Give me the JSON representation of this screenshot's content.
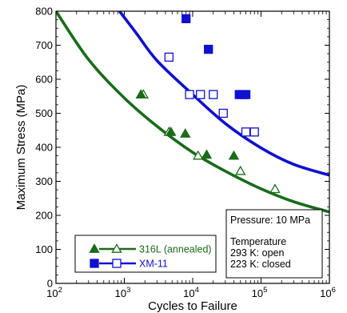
{
  "chart_data": {
    "type": "scatter",
    "xscale": "log",
    "xlim": [
      100,
      1000000
    ],
    "ylim": [
      0,
      800
    ],
    "xlabel": "Cycles to Failure",
    "ylabel": "Maximum Stress (MPa)",
    "x_ticks": [
      {
        "value": 100,
        "base": "10",
        "exp": "2"
      },
      {
        "value": 1000,
        "base": "10",
        "exp": "3"
      },
      {
        "value": 10000,
        "base": "10",
        "exp": "4"
      },
      {
        "value": 100000,
        "base": "10",
        "exp": "5"
      },
      {
        "value": 1000000,
        "base": "10",
        "exp": "6"
      }
    ],
    "y_ticks": [
      "0",
      "100",
      "200",
      "300",
      "400",
      "500",
      "600",
      "700",
      "800"
    ],
    "colors": {
      "green": "#1a6b1a",
      "blue": "#1010d0"
    },
    "series": [
      {
        "name": "316L (annealed)",
        "color": "#1a6b1a",
        "marker": "triangle",
        "open_293K": [
          [
            1900,
            555
          ],
          [
            4500,
            445
          ],
          [
            12000,
            375
          ],
          [
            50000,
            330
          ],
          [
            160000,
            277
          ]
        ],
        "closed_223K": [
          [
            1750,
            555
          ],
          [
            4800,
            445
          ],
          [
            7800,
            440
          ],
          [
            16000,
            378
          ],
          [
            40000,
            375
          ]
        ],
        "fit_curve": [
          [
            100,
            800
          ],
          [
            300,
            658
          ],
          [
            1000,
            545
          ],
          [
            3000,
            462
          ],
          [
            10000,
            385
          ],
          [
            30000,
            330
          ],
          [
            100000,
            278
          ],
          [
            300000,
            240
          ],
          [
            1000000,
            210
          ]
        ]
      },
      {
        "name": "XM-11",
        "color": "#1010d0",
        "marker": "square",
        "open_293K": [
          [
            4500,
            665
          ],
          [
            9000,
            555
          ],
          [
            13000,
            555
          ],
          [
            20000,
            555
          ],
          [
            28000,
            500
          ],
          [
            60000,
            445
          ],
          [
            80000,
            445
          ]
        ],
        "closed_223K": [
          [
            8000,
            778
          ],
          [
            17000,
            688
          ],
          [
            48000,
            555
          ],
          [
            55000,
            555
          ],
          [
            60000,
            555
          ]
        ],
        "fit_curve": [
          [
            850,
            800
          ],
          [
            1500,
            735
          ],
          [
            3000,
            655
          ],
          [
            10000,
            555
          ],
          [
            30000,
            470
          ],
          [
            100000,
            398
          ],
          [
            300000,
            350
          ],
          [
            1000000,
            318
          ]
        ]
      }
    ],
    "info_box": {
      "line1": "Pressure: 10 MPa",
      "line2": "Temperature",
      "line3": "293 K: open",
      "line4": "223 K: closed"
    },
    "legend": {
      "items": [
        "316L (annealed)",
        "XM-11"
      ],
      "placement": "bottom-left"
    }
  }
}
